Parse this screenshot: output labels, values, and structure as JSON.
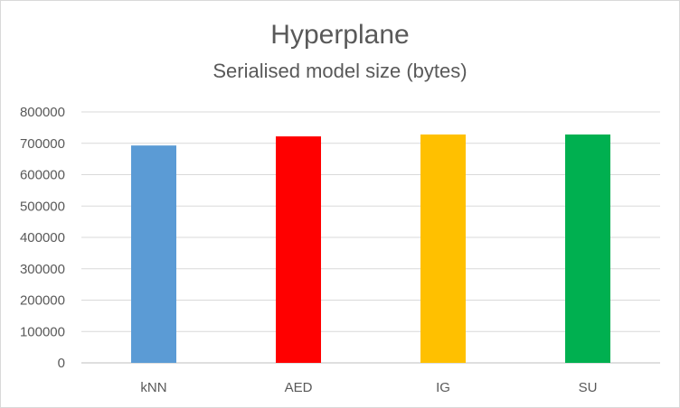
{
  "chart_data": {
    "type": "bar",
    "title": "Hyperplane",
    "subtitle": "Serialised model size (bytes)",
    "categories": [
      "kNN",
      "AED",
      "IG",
      "SU"
    ],
    "values": [
      693000,
      722000,
      728000,
      728000
    ],
    "colors": [
      "#5b9bd5",
      "#ff0000",
      "#ffc000",
      "#00b050"
    ],
    "ylim": [
      0,
      800000
    ],
    "yticks": [
      0,
      100000,
      200000,
      300000,
      400000,
      500000,
      600000,
      700000,
      800000
    ],
    "grid": true,
    "legend": "none"
  }
}
